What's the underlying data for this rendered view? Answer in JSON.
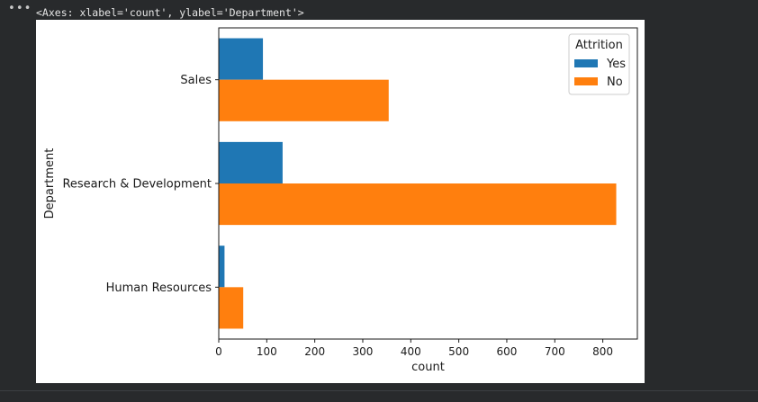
{
  "output": {
    "menu_glyph": "•••",
    "repr": "<Axes: xlabel='count', ylabel='Department'>"
  },
  "chart_data": {
    "type": "bar",
    "orientation": "horizontal",
    "categories": [
      "Sales",
      "Research & Development",
      "Human Resources"
    ],
    "series": [
      {
        "name": "Yes",
        "color": "#1f77b4",
        "values": [
          92,
          133,
          12
        ]
      },
      {
        "name": "No",
        "color": "#ff7f0e",
        "values": [
          354,
          828,
          51
        ]
      }
    ],
    "xlabel": "count",
    "ylabel": "Department",
    "xlim": [
      0,
      872
    ],
    "xticks": [
      0,
      100,
      200,
      300,
      400,
      500,
      600,
      700,
      800
    ],
    "legend": {
      "title": "Attrition",
      "placement": "top-right"
    },
    "grid": false
  }
}
